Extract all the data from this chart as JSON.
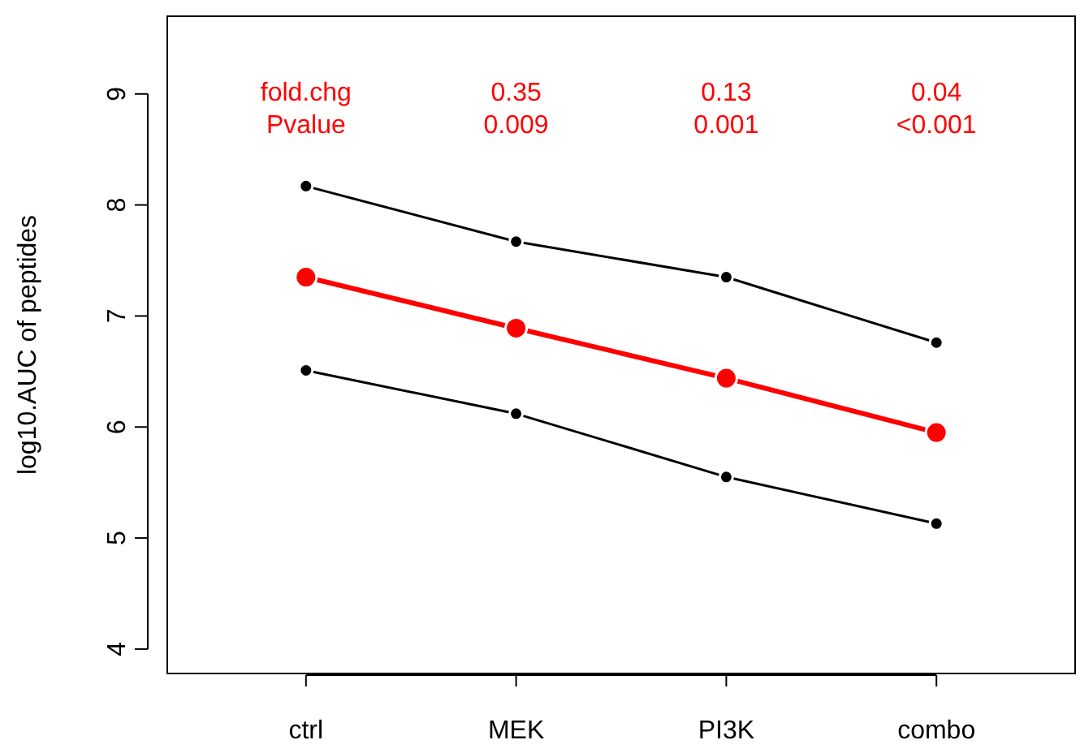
{
  "chart_data": {
    "type": "line",
    "ylabel": "log10.AUC of peptides",
    "categories": [
      "ctrl",
      "MEK",
      "PI3K",
      "combo"
    ],
    "series": [
      {
        "color": "#000000",
        "values": [
          8.17,
          7.67,
          7.35,
          6.76
        ]
      },
      {
        "color": "#ff0000",
        "values": [
          7.35,
          6.89,
          6.44,
          5.95
        ]
      },
      {
        "color": "#000000",
        "values": [
          6.51,
          6.12,
          5.55,
          5.13
        ]
      }
    ],
    "ylim": [
      3.78,
      9.7
    ],
    "yticks": [
      4,
      5,
      6,
      7,
      8,
      9
    ],
    "marker": "circle",
    "line_style": "solid",
    "grid": false,
    "annotations": [
      "fold.chg",
      "Pvalue",
      "0.35",
      "0.009",
      "0.13",
      "0.001",
      "0.04",
      "<0.001"
    ]
  }
}
